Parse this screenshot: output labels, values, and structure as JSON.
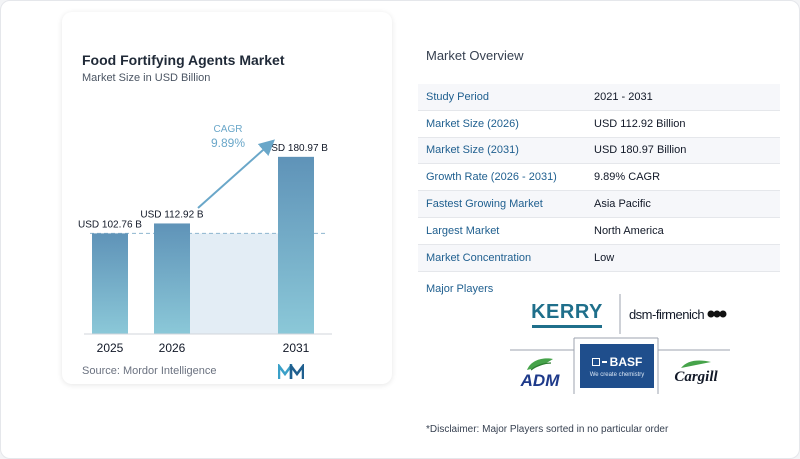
{
  "chart_data": {
    "type": "bar",
    "title": "Food Fortifying Agents Market",
    "subtitle": "Market Size in USD Billion",
    "categories": [
      "2025",
      "2026",
      "2031"
    ],
    "values": [
      102.76,
      112.92,
      180.97
    ],
    "value_labels": [
      "USD 102.76 B",
      "USD 112.92 B",
      "USD 180.97 B"
    ],
    "cagr_label": "CAGR",
    "cagr_value": "9.89%",
    "ylim": [
      0,
      190
    ],
    "colors": {
      "bar_top": "#5f93b8",
      "bar_bottom": "#8bc8d8",
      "shade": "#e3edf5",
      "arrow": "#6aa7c9",
      "cagr_text": "#6aa7c9"
    }
  },
  "source": "Source:  Mordor Intelligence",
  "overview": {
    "title": "Market Overview",
    "rows": [
      {
        "label": "Study Period",
        "value": "2021 - 2031"
      },
      {
        "label": "Market Size (2026)",
        "value": "USD 112.92 Billion"
      },
      {
        "label": "Market Size (2031)",
        "value": "USD 180.97 Billion"
      },
      {
        "label": "Growth Rate (2026 - 2031)",
        "value": "9.89% CAGR"
      },
      {
        "label": "Fastest Growing Market",
        "value": "Asia Pacific"
      },
      {
        "label": "Largest Market",
        "value": "North America"
      },
      {
        "label": "Market Concentration",
        "value": "Low"
      }
    ]
  },
  "players": {
    "title": "Major Players",
    "logos": {
      "kerry": "KERRY",
      "dsm": "dsm-firmenich",
      "adm": "ADM",
      "basf": "BASF",
      "basf_tagline": "We create chemistry",
      "cargill": "Cargill"
    }
  },
  "disclaimer": "*Disclaimer: Major Players sorted in no particular order"
}
